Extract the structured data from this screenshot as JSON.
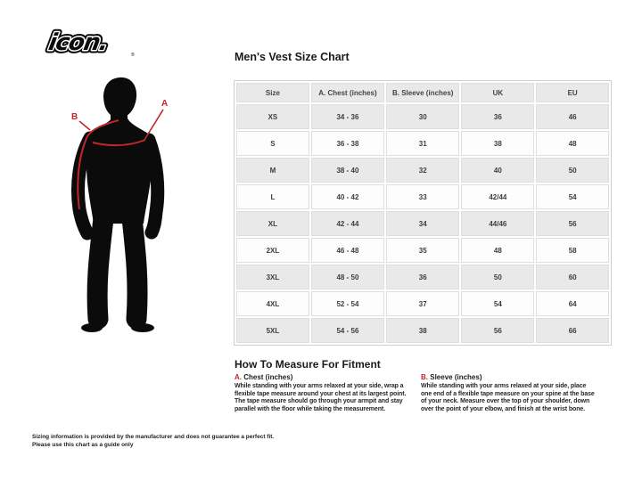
{
  "brand": {
    "logo_text": "icon.",
    "reg_mark": "®"
  },
  "colors": {
    "accent_red": "#c1272d",
    "silhouette_black": "#0b0b0b",
    "row_gray": "#e9e9e9",
    "row_white": "#fdfdfd"
  },
  "figure": {
    "label_a": "A",
    "label_b": "B"
  },
  "chart": {
    "title": "Men's Vest Size Chart",
    "columns": [
      "Size",
      "A. Chest (inches)",
      "B. Sleeve (inches)",
      "UK",
      "EU"
    ],
    "rows": [
      [
        "XS",
        "34 - 36",
        "30",
        "36",
        "46"
      ],
      [
        "S",
        "36 - 38",
        "31",
        "38",
        "48"
      ],
      [
        "M",
        "38 - 40",
        "32",
        "40",
        "50"
      ],
      [
        "L",
        "40 - 42",
        "33",
        "42/44",
        "54"
      ],
      [
        "XL",
        "42 - 44",
        "34",
        "44/46",
        "56"
      ],
      [
        "2XL",
        "46 - 48",
        "35",
        "48",
        "58"
      ],
      [
        "3XL",
        "48 - 50",
        "36",
        "50",
        "60"
      ],
      [
        "4XL",
        "52 - 54",
        "37",
        "54",
        "64"
      ],
      [
        "5XL",
        "54 - 56",
        "38",
        "56",
        "66"
      ]
    ]
  },
  "how_to": {
    "title": "How To Measure For Fitment",
    "sections": [
      {
        "prefix": "A.",
        "name": "Chest (inches)",
        "body": "While standing with your arms relaxed at your side, wrap a flexible tape measure around your chest at its largest point. The tape measure should go through your armpit and stay parallel with the floor while taking the measurement."
      },
      {
        "prefix": "B.",
        "name": "Sleeve (inches)",
        "body": "While standing with your arms relaxed at your side, place one end of a flexible tape measure on your spine at the base of your neck. Measure over the top of your shoulder, down over the point of your elbow, and finish at the wrist bone."
      }
    ]
  },
  "disclaimer": {
    "line1": "Sizing information is provided by the manufacturer and does not guarantee a perfect fit.",
    "line2": "Please use this chart as a guide only"
  }
}
